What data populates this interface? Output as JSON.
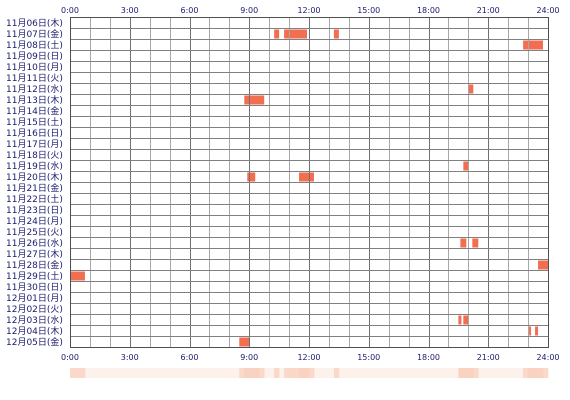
{
  "chart_data": {
    "type": "heatmap",
    "title": "",
    "xlabel": "",
    "ylabel": "",
    "xlim": [
      0,
      24
    ],
    "x_tick_labels": [
      "0:00",
      "3:00",
      "6:00",
      "9:00",
      "12:00",
      "15:00",
      "18:00",
      "21:00",
      "24:00"
    ],
    "grid": true,
    "bar_color": "#f26e50",
    "summary_strip_color": "#f9d2c2",
    "days": [
      {
        "label": "11月06日(木)",
        "active": []
      },
      {
        "label": "11月07日(金)",
        "active": [
          [
            10.25,
            10.5
          ],
          [
            10.75,
            11
          ],
          [
            11,
            11.75
          ],
          [
            11.75,
            11.9
          ],
          [
            13.25,
            13.5
          ]
        ]
      },
      {
        "label": "11月08日(土)",
        "active": [
          [
            22.75,
            23
          ],
          [
            23,
            23.75
          ]
        ]
      },
      {
        "label": "11月09日(日)",
        "active": []
      },
      {
        "label": "11月10日(月)",
        "active": []
      },
      {
        "label": "11月11日(火)",
        "active": []
      },
      {
        "label": "11月12日(水)",
        "active": [
          [
            20,
            20.25
          ]
        ]
      },
      {
        "label": "11月13日(木)",
        "active": [
          [
            8.75,
            9
          ],
          [
            9,
            9.75
          ]
        ]
      },
      {
        "label": "11月14日(金)",
        "active": []
      },
      {
        "label": "11月15日(土)",
        "active": []
      },
      {
        "label": "11月16日(日)",
        "active": []
      },
      {
        "label": "11月17日(月)",
        "active": []
      },
      {
        "label": "11月18日(火)",
        "active": []
      },
      {
        "label": "11月19日(水)",
        "active": [
          [
            19.75,
            20
          ]
        ]
      },
      {
        "label": "11月20日(木)",
        "active": [
          [
            8.9,
            9.3
          ],
          [
            11.5,
            11.75
          ],
          [
            11.75,
            12.25
          ]
        ]
      },
      {
        "label": "11月21日(金)",
        "active": []
      },
      {
        "label": "11月22日(土)",
        "active": []
      },
      {
        "label": "11月23日(日)",
        "active": []
      },
      {
        "label": "11月24日(月)",
        "active": []
      },
      {
        "label": "11月25日(火)",
        "active": []
      },
      {
        "label": "11月26日(水)",
        "active": [
          [
            19.6,
            19.9
          ],
          [
            20.2,
            20.5
          ]
        ]
      },
      {
        "label": "11月27日(木)",
        "active": []
      },
      {
        "label": "11月28日(金)",
        "active": [
          [
            23.5,
            24
          ]
        ]
      },
      {
        "label": "11月29日(土)",
        "active": [
          [
            0,
            0.75
          ]
        ]
      },
      {
        "label": "11月30日(日)",
        "active": []
      },
      {
        "label": "12月01日(月)",
        "active": []
      },
      {
        "label": "12月02日(火)",
        "active": []
      },
      {
        "label": "12月03日(水)",
        "active": [
          [
            19.5,
            19.65
          ],
          [
            19.75,
            20
          ]
        ]
      },
      {
        "label": "12月04日(木)",
        "active": [
          [
            23.05,
            23.15
          ],
          [
            23.35,
            23.5
          ]
        ]
      },
      {
        "label": "12月05日(金)",
        "active": [
          [
            8.5,
            9
          ]
        ]
      }
    ]
  }
}
